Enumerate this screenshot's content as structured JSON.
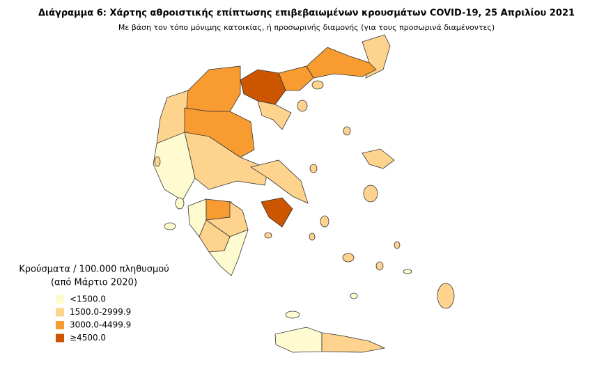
{
  "header": {
    "title": "Διάγραμμα 6: Χάρτης αθροιστικής επίπτωσης επιβεβαιωμένων κρουσμάτων COVID-19, 25 Απριλίου 2021",
    "subtitle": "Με βάση τον τόπο μόνιμης κατοικίας, ή προσωρινής διαμονής (για τους προσωρινά διαμένοντες)"
  },
  "legend": {
    "title": "Κρούσματα / 100.000 πληθυσμού",
    "subtitle": "(από Μάρτιο 2020)",
    "items": [
      {
        "label": "<1500.0",
        "color": "#fffbd0"
      },
      {
        "label": "1500.0-2999.9",
        "color": "#fdd38e"
      },
      {
        "label": "3000.0-4499.9",
        "color": "#f89b30"
      },
      {
        "label": "≥4500.0",
        "color": "#cc5500"
      }
    ]
  }
}
